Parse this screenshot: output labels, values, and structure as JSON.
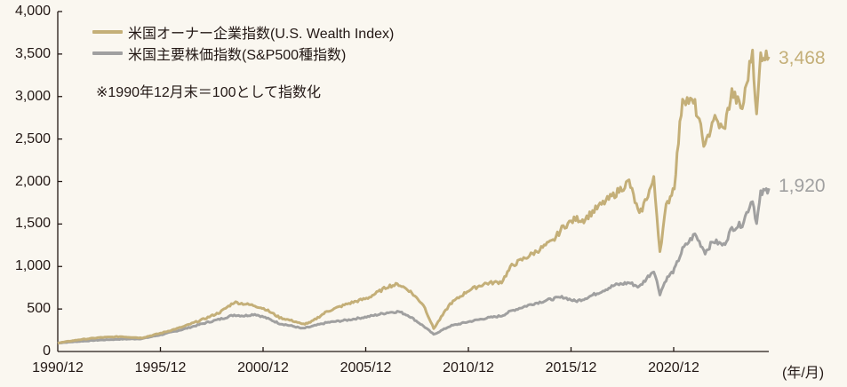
{
  "chart_data": {
    "type": "line",
    "title": "",
    "xlabel": "(年/月)",
    "ylabel": "",
    "ylim": [
      0,
      4000
    ],
    "yticks": [
      "0",
      "500",
      "1,000",
      "1,500",
      "2,000",
      "2,500",
      "3,000",
      "3,500",
      "4,000"
    ],
    "xticks": [
      "1990/12",
      "1995/12",
      "2000/12",
      "2005/12",
      "2010/12",
      "2015/12",
      "2020/12"
    ],
    "grid": false,
    "legend_position": "top-left",
    "note": "※1990年12月末＝100として指数化",
    "x": [
      1990.92,
      1992,
      1993,
      1994,
      1995,
      1996,
      1997,
      1998,
      1998.8,
      1999.5,
      2000,
      2000.5,
      2001,
      2001.7,
      2002.5,
      2002.8,
      2003.2,
      2004,
      2005,
      2006,
      2007,
      2007.5,
      2008,
      2008.7,
      2009.2,
      2010,
      2010.9,
      2011.7,
      2012.5,
      2013,
      2014,
      2015,
      2015.5,
      2016.1,
      2016.5,
      2017,
      2018,
      2018.7,
      2019.2,
      2019.9,
      2020.2,
      2020.5,
      2020.9,
      2021.3,
      2021.9,
      2022.4,
      2022.8,
      2023.3,
      2023.7,
      2024.2,
      2024.7,
      2024.9,
      2025.1,
      2025.5
    ],
    "series": [
      {
        "name": "米国オーナー企業指数(U.S. Wealth Index)",
        "color": "#c4af78",
        "end_label": "3,468",
        "values": [
          100,
          140,
          165,
          175,
          160,
          220,
          290,
          380,
          460,
          580,
          560,
          540,
          500,
          400,
          350,
          320,
          340,
          470,
          560,
          630,
          770,
          790,
          720,
          550,
          270,
          560,
          720,
          800,
          820,
          1010,
          1150,
          1300,
          1470,
          1560,
          1550,
          1660,
          1850,
          2000,
          1600,
          2020,
          1180,
          1700,
          1950,
          3000,
          2900,
          2400,
          2750,
          2600,
          3050,
          2850,
          3550,
          2750,
          3500,
          3468
        ]
      },
      {
        "name": "米国主要株価指数(S&P500種指数)",
        "color": "#a0a0a0",
        "end_label": "1,920",
        "values": [
          100,
          120,
          135,
          145,
          150,
          200,
          260,
          330,
          380,
          430,
          420,
          440,
          400,
          330,
          290,
          270,
          290,
          340,
          370,
          410,
          460,
          470,
          420,
          300,
          200,
          300,
          350,
          390,
          420,
          480,
          560,
          620,
          640,
          590,
          620,
          670,
          780,
          810,
          760,
          960,
          680,
          850,
          960,
          1200,
          1380,
          1170,
          1300,
          1250,
          1450,
          1500,
          1800,
          1500,
          1850,
          1920
        ]
      }
    ]
  },
  "labels": {
    "unit": "(年/月)"
  }
}
